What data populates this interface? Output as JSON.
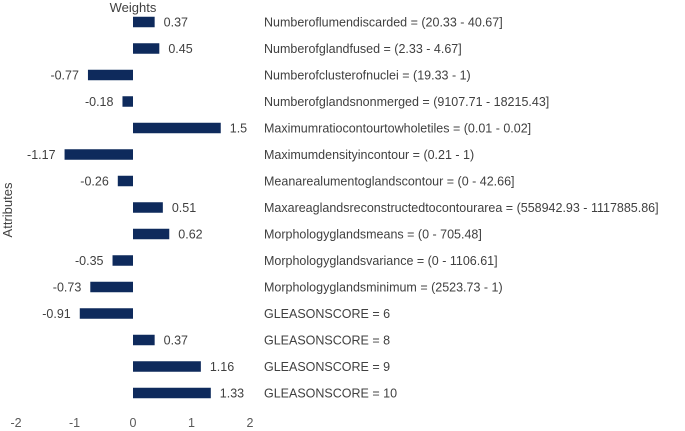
{
  "chart_data": {
    "type": "bar",
    "orientation": "horizontal",
    "title": "Weights",
    "xlabel": "",
    "ylabel": "Attributes",
    "xlim": [
      -2,
      2
    ],
    "xticks": [
      "-2",
      "-1",
      "0",
      "1",
      "2"
    ],
    "grid": false,
    "bar_color": "#0e2a5c",
    "categories": [
      "Numberoflumendiscarded = (20.33 - 40.67]",
      "Numberofglandfused = (2.33 - 4.67]",
      "Numberofclusterofnuclei = (19.33 - 1)",
      "Numberofglandsnonmerged = (9107.71 - 18215.43]",
      "Maximumratiocontourtowholetiles = (0.01 - 0.02]",
      "Maximumdensityincontour = (0.21 - 1)",
      "Meanarealumentoglandscontour = (0 - 42.66]",
      "Maxareaglandsreconstructedtocontourarea = (558942.93 - 1117885.86]",
      "Morphologyglandsmeans = (0 - 705.48]",
      "Morphologyglandsvariance = (0 - 1106.61]",
      "Morphologyglandsminimum = (2523.73 - 1)",
      "GLEASONSCORE = 6",
      "GLEASONSCORE = 8",
      "GLEASONSCORE = 9",
      "GLEASONSCORE = 10"
    ],
    "values": [
      0.37,
      0.45,
      -0.77,
      -0.18,
      1.5,
      -1.17,
      -0.26,
      0.51,
      0.62,
      -0.35,
      -0.73,
      -0.91,
      0.37,
      1.16,
      1.33
    ],
    "value_labels": [
      "0.37",
      "0.45",
      "-0.77",
      "-0.18",
      "1.5",
      "-1.17",
      "-0.26",
      "0.51",
      "0.62",
      "-0.35",
      "-0.73",
      "-0.91",
      "0.37",
      "1.16",
      "1.33"
    ]
  }
}
